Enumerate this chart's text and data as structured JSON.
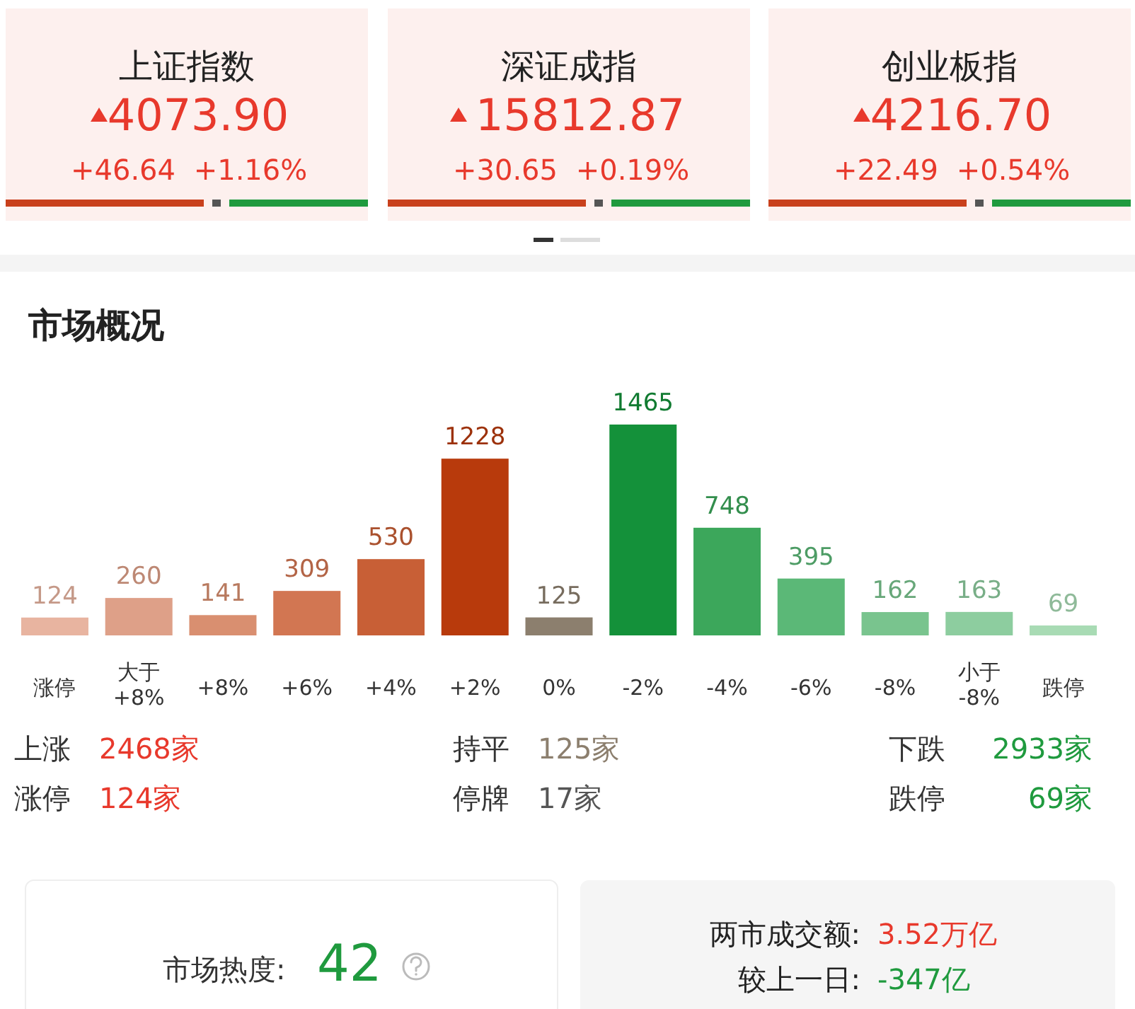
{
  "chart_data": {
    "type": "bar",
    "title": "市场概况",
    "categories": [
      "涨停",
      "大于\n+8%",
      "+8%",
      "+6%",
      "+4%",
      "+2%",
      "0%",
      "-2%",
      "-4%",
      "-6%",
      "-8%",
      "小于\n-8%",
      "跌停"
    ],
    "values": [
      124,
      260,
      141,
      309,
      530,
      1228,
      125,
      1465,
      748,
      395,
      162,
      163,
      69
    ],
    "colors": [
      "#e8b4a0",
      "#dea088",
      "#d98f70",
      "#d27652",
      "#c85f36",
      "#b83a0c",
      "#8c7f6e",
      "#14913a",
      "#3ca75b",
      "#5bb877",
      "#79c48e",
      "#8dcd9f",
      "#a8dbb4"
    ],
    "data_labels": true,
    "annotations": [
      "上证指数",
      "4073.90",
      "+46.64",
      "+1.16%",
      "深证成指",
      "15812.87",
      "+30.65",
      "+0.19%",
      "创业板指",
      "4216.70",
      "+22.49",
      "+0.54%",
      "上涨",
      "2468家",
      "持平",
      "125家",
      "下跌",
      "2933家",
      "涨停",
      "124家",
      "停牌",
      "17家",
      "跌停",
      "69家",
      "市场热度:",
      "42",
      "两市成交额:",
      "3.52万亿",
      "较上一日:",
      "-347亿"
    ]
  }
}
